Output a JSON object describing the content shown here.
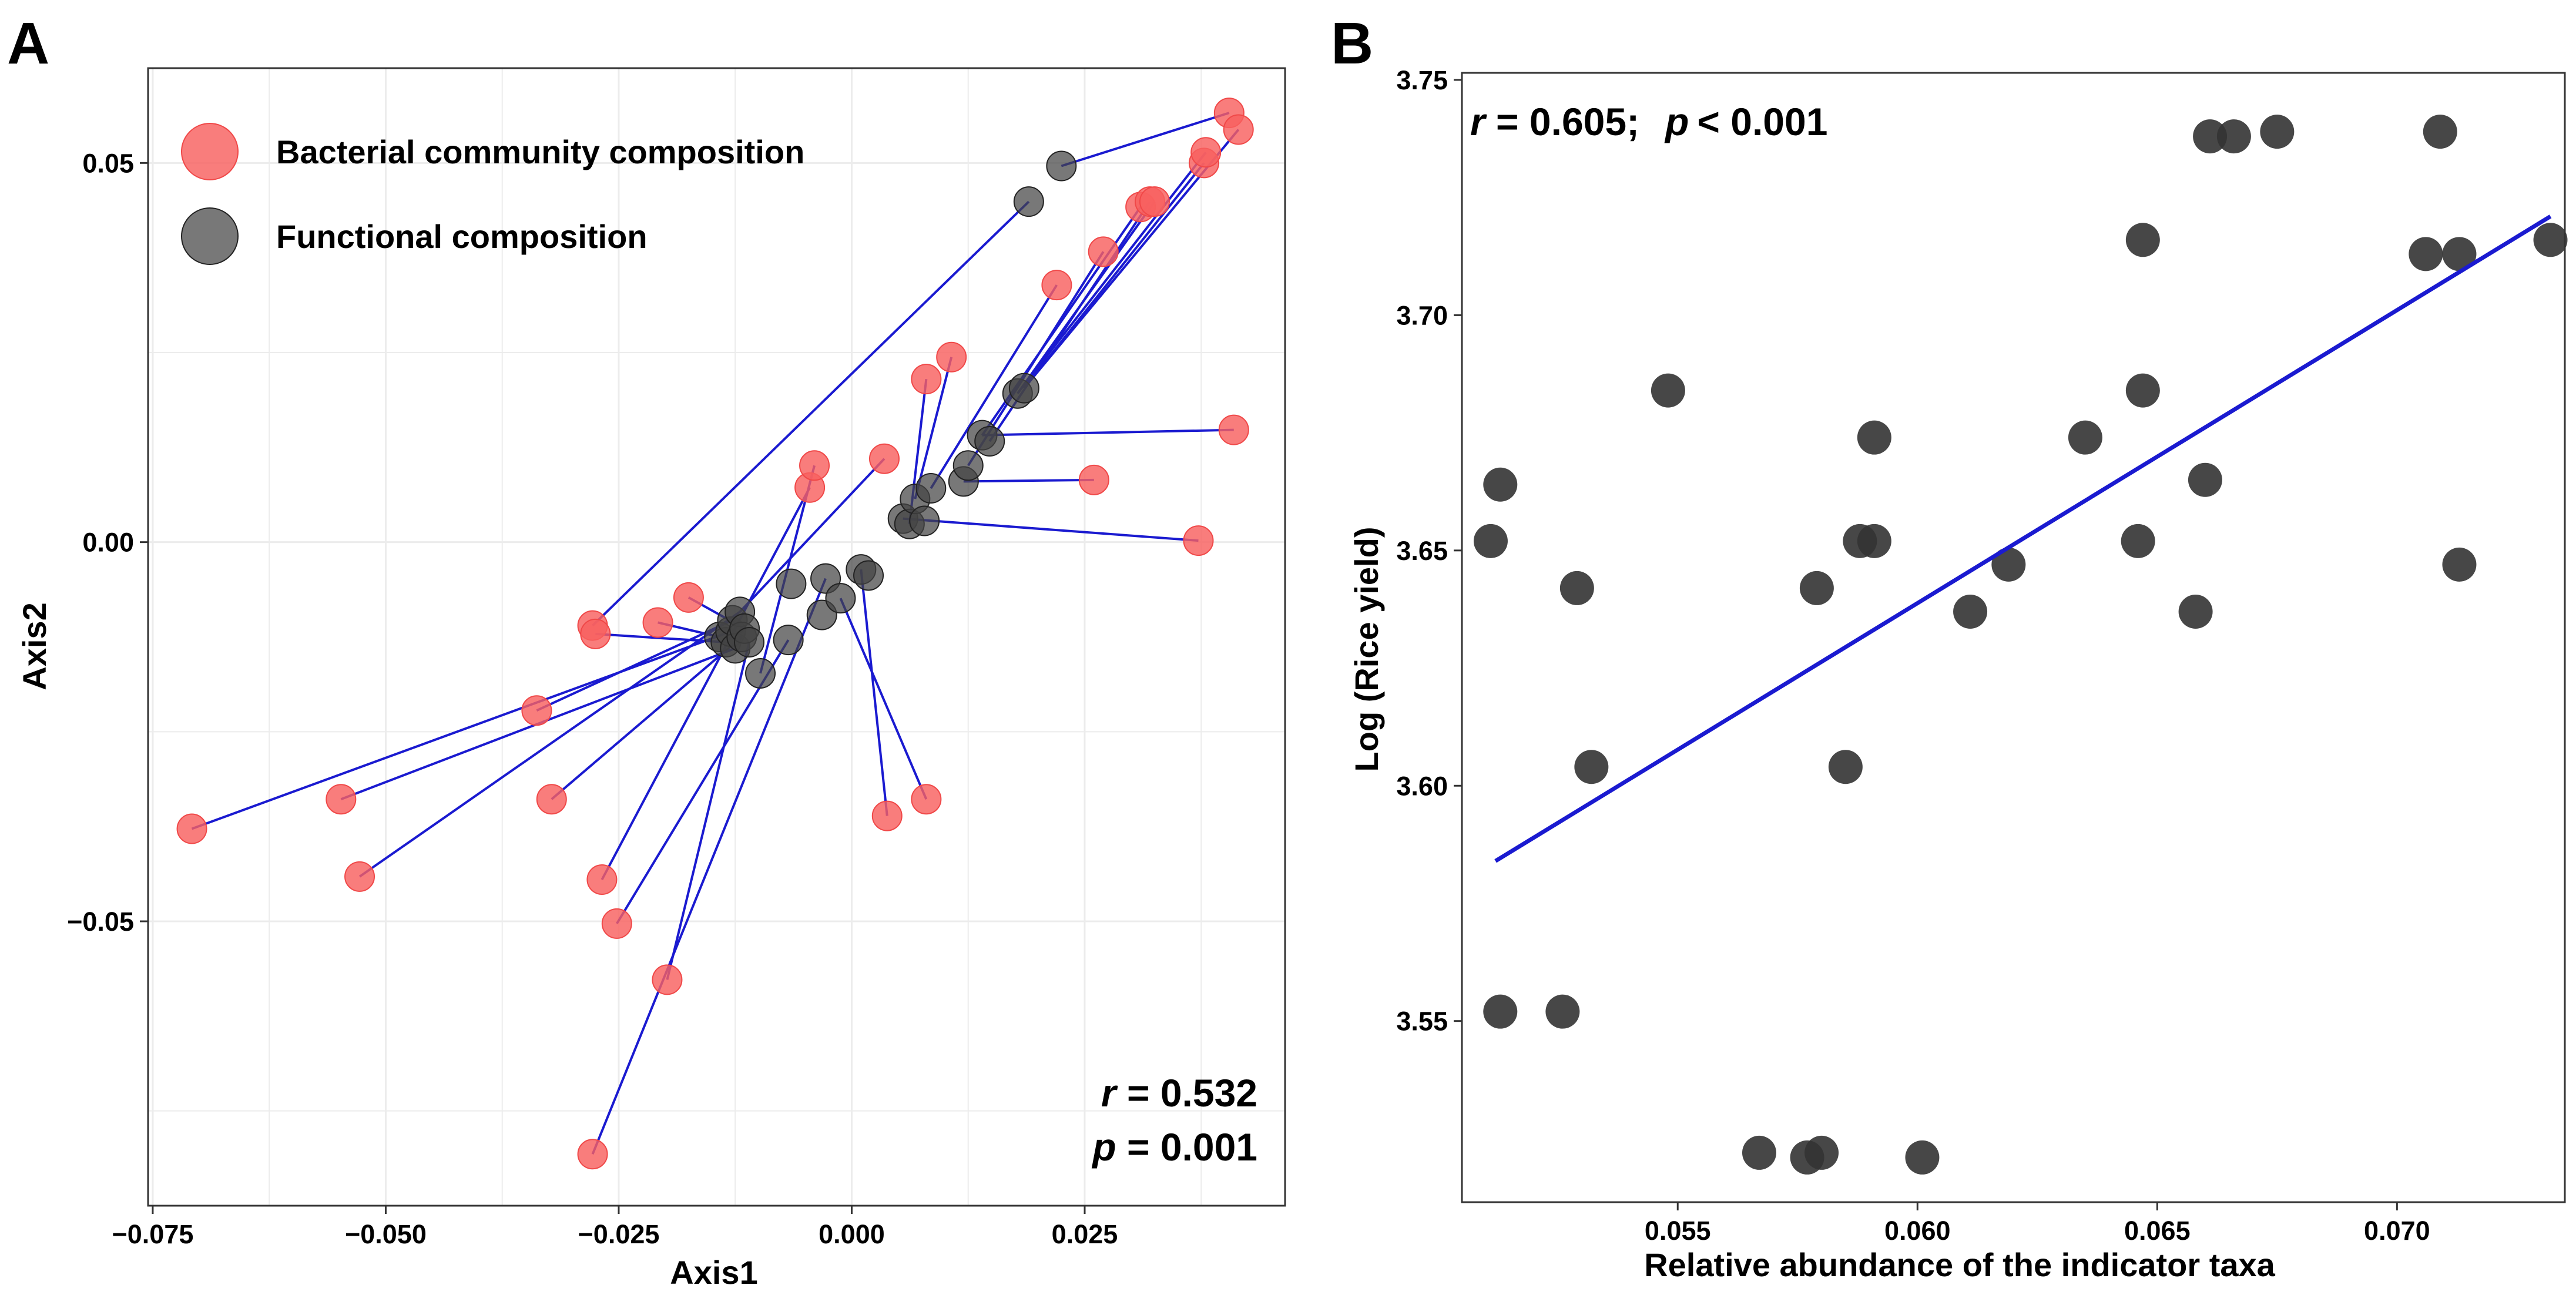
{
  "chart_data": [
    {
      "panel": "A",
      "type": "scatter",
      "subtype": "procrustes",
      "xlabel": "Axis1",
      "ylabel": "Axis2",
      "xlim": [
        -0.0755,
        0.0465
      ],
      "ylim": [
        -0.0875,
        0.0625
      ],
      "xticks": [
        -0.075,
        -0.05,
        -0.025,
        0.0,
        0.025
      ],
      "xtick_labels": [
        "−0.075",
        "−0.050",
        "−0.025",
        "0.000",
        "0.025"
      ],
      "yticks": [
        0.05,
        0.0,
        -0.05
      ],
      "ytick_labels": [
        "0.05",
        "0.00",
        "−0.05"
      ],
      "grid": true,
      "legend": [
        {
          "label": "Bacterial community composition",
          "color": "#f8605f"
        },
        {
          "label": "Functional composition",
          "color": "#444444"
        }
      ],
      "stat_r_label": "r",
      "stat_r_value": " = 0.532",
      "stat_p_label": "p",
      "stat_p_value": " = 0.001",
      "series": [
        {
          "name": "Bacterial community composition",
          "points": [
            [
              -0.0708,
              -0.0378
            ],
            [
              -0.0548,
              -0.0339
            ],
            [
              -0.0528,
              -0.0441
            ],
            [
              -0.0338,
              -0.0222
            ],
            [
              -0.0322,
              -0.0339
            ],
            [
              -0.0278,
              -0.011
            ],
            [
              -0.0275,
              -0.0121
            ],
            [
              -0.0268,
              -0.0445
            ],
            [
              -0.0252,
              -0.0503
            ],
            [
              -0.0208,
              -0.0106
            ],
            [
              -0.0198,
              -0.0577
            ],
            [
              -0.0175,
              -0.0073
            ],
            [
              -0.0278,
              -0.0807
            ],
            [
              -0.0045,
              0.0072
            ],
            [
              -0.004,
              0.0101
            ],
            [
              0.0035,
              0.011
            ],
            [
              0.0038,
              -0.0361
            ],
            [
              0.008,
              -0.0339
            ],
            [
              0.008,
              0.0215
            ],
            [
              0.0107,
              0.0244
            ],
            [
              0.022,
              0.0339
            ],
            [
              0.026,
              0.0082
            ],
            [
              0.027,
              0.0383
            ],
            [
              0.031,
              0.0442
            ],
            [
              0.032,
              0.0449
            ],
            [
              0.0325,
              0.0449
            ],
            [
              0.0372,
              0.0002
            ],
            [
              0.0378,
              0.05
            ],
            [
              0.038,
              0.0514
            ],
            [
              0.0405,
              0.0566
            ],
            [
              0.0415,
              0.0544
            ],
            [
              0.041,
              0.0148
            ]
          ]
        },
        {
          "name": "Functional composition",
          "points": [
            [
              -0.0142,
              -0.0125
            ],
            [
              -0.0135,
              -0.0132
            ],
            [
              -0.013,
              -0.0118
            ],
            [
              -0.0128,
              -0.0103
            ],
            [
              -0.0125,
              -0.014
            ],
            [
              -0.012,
              -0.0092
            ],
            [
              -0.0118,
              -0.0125
            ],
            [
              -0.0115,
              -0.0114
            ],
            [
              -0.011,
              -0.0132
            ],
            [
              -0.0098,
              -0.0173
            ],
            [
              -0.0068,
              -0.0129
            ],
            [
              -0.0065,
              -0.0055
            ],
            [
              -0.0032,
              -0.0096
            ],
            [
              -0.0028,
              -0.0048
            ],
            [
              -0.0012,
              -0.0074
            ],
            [
              0.001,
              -0.0036
            ],
            [
              0.0018,
              -0.0044
            ],
            [
              0.0055,
              0.0031
            ],
            [
              0.0062,
              0.0024
            ],
            [
              0.0068,
              0.0057
            ],
            [
              0.0078,
              0.0028
            ],
            [
              0.0085,
              0.0071
            ],
            [
              0.012,
              0.008
            ],
            [
              0.0125,
              0.0101
            ],
            [
              0.014,
              0.0141
            ],
            [
              0.0148,
              0.0133
            ],
            [
              0.0178,
              0.0196
            ],
            [
              0.0185,
              0.0203
            ],
            [
              0.019,
              0.0449
            ],
            [
              0.0225,
              0.0496
            ]
          ]
        }
      ],
      "links": [
        [
          -0.0708,
          -0.0378,
          -0.013,
          -0.0118
        ],
        [
          -0.0548,
          -0.0339,
          -0.0125,
          -0.014
        ],
        [
          -0.0528,
          -0.0441,
          -0.012,
          -0.0092
        ],
        [
          -0.0338,
          -0.0222,
          -0.0128,
          -0.0103
        ],
        [
          -0.0322,
          -0.0339,
          -0.0118,
          -0.0125
        ],
        [
          -0.0275,
          -0.0121,
          -0.0135,
          -0.0132
        ],
        [
          -0.0268,
          -0.0445,
          -0.0045,
          0.0072
        ],
        [
          -0.0252,
          -0.0503,
          -0.0068,
          -0.0129
        ],
        [
          -0.0208,
          -0.0106,
          -0.0142,
          -0.0125
        ],
        [
          -0.0198,
          -0.0577,
          -0.011,
          -0.0132
        ],
        [
          -0.0175,
          -0.0073,
          -0.0115,
          -0.0114
        ],
        [
          -0.0278,
          -0.0807,
          -0.0028,
          -0.0048
        ],
        [
          -0.0278,
          -0.011,
          0.019,
          0.0449
        ],
        [
          -0.004,
          0.0101,
          -0.0098,
          -0.0173
        ],
        [
          0.0035,
          0.011,
          -0.012,
          -0.0092
        ],
        [
          0.0038,
          -0.0361,
          0.001,
          -0.0036
        ],
        [
          0.008,
          -0.0339,
          -0.0012,
          -0.0074
        ],
        [
          0.008,
          0.0215,
          0.0062,
          0.0024
        ],
        [
          0.0107,
          0.0244,
          0.0068,
          0.0057
        ],
        [
          0.022,
          0.0339,
          0.0085,
          0.0071
        ],
        [
          0.026,
          0.0082,
          0.012,
          0.008
        ],
        [
          0.027,
          0.0383,
          0.0125,
          0.0101
        ],
        [
          0.031,
          0.0442,
          0.014,
          0.0141
        ],
        [
          0.032,
          0.0449,
          0.0148,
          0.0133
        ],
        [
          0.0325,
          0.0449,
          0.0178,
          0.0196
        ],
        [
          0.0372,
          0.0002,
          0.0055,
          0.0031
        ],
        [
          0.0378,
          0.05,
          0.0185,
          0.0203
        ],
        [
          0.038,
          0.0514,
          0.0178,
          0.0196
        ],
        [
          0.0405,
          0.0566,
          0.0225,
          0.0496
        ],
        [
          0.0415,
          0.0544,
          0.0185,
          0.0203
        ],
        [
          0.041,
          0.0148,
          0.014,
          0.0141
        ]
      ]
    },
    {
      "panel": "B",
      "type": "scatter",
      "xlabel": "Relative abundance of the indicator taxa",
      "ylabel": "Log (Rice yield)",
      "xlim": [
        0.0505,
        0.0735
      ],
      "ylim": [
        3.5115,
        3.7515
      ],
      "xticks": [
        0.055,
        0.06,
        0.065,
        0.07
      ],
      "xtick_labels": [
        "0.055",
        "0.060",
        "0.065",
        "0.070"
      ],
      "yticks": [
        3.55,
        3.6,
        3.65,
        3.7,
        3.75
      ],
      "ytick_labels": [
        "3.55",
        "3.60",
        "3.65",
        "3.70",
        "3.75"
      ],
      "grid": false,
      "stat_r_label": "r",
      "stat_r_value": " = 0.605;",
      "stat_p_label": "p",
      "stat_p_value": "< 0.001",
      "points": [
        [
          0.0511,
          3.652
        ],
        [
          0.0513,
          3.664
        ],
        [
          0.0513,
          3.552
        ],
        [
          0.0526,
          3.552
        ],
        [
          0.0529,
          3.642
        ],
        [
          0.0532,
          3.604
        ],
        [
          0.0548,
          3.684
        ],
        [
          0.0567,
          3.522
        ],
        [
          0.0577,
          3.521
        ],
        [
          0.058,
          3.522
        ],
        [
          0.0579,
          3.642
        ],
        [
          0.0585,
          3.604
        ],
        [
          0.0588,
          3.652
        ],
        [
          0.0591,
          3.652
        ],
        [
          0.0591,
          3.674
        ],
        [
          0.0601,
          3.521
        ],
        [
          0.0611,
          3.637
        ],
        [
          0.0619,
          3.647
        ],
        [
          0.0635,
          3.674
        ],
        [
          0.0646,
          3.652
        ],
        [
          0.0647,
          3.716
        ],
        [
          0.0647,
          3.684
        ],
        [
          0.0658,
          3.637
        ],
        [
          0.066,
          3.665
        ],
        [
          0.0661,
          3.738
        ],
        [
          0.0666,
          3.738
        ],
        [
          0.0675,
          3.739
        ],
        [
          0.0706,
          3.713
        ],
        [
          0.0709,
          3.739
        ],
        [
          0.0713,
          3.713
        ],
        [
          0.0713,
          3.647
        ],
        [
          0.0732,
          3.716
        ]
      ],
      "fit_line": [
        [
          0.0512,
          3.584
        ],
        [
          0.0732,
          3.721
        ]
      ]
    }
  ],
  "colors": {
    "bacterial": "#f8605f",
    "bacterial_stroke": "#f04848",
    "functional": "#444444",
    "functional_stroke": "#222222",
    "link": "#1a1ad0",
    "grid": "#ececec",
    "frame": "#333333",
    "fit": "#1a1ad0",
    "panel_b_point": "#333333"
  }
}
